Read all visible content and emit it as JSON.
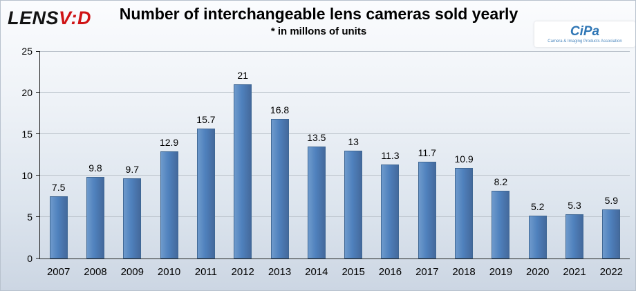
{
  "header": {
    "logo": {
      "black_part": "LENS",
      "red_part": "V:D"
    },
    "title": "Number of interchangeable lens cameras sold yearly",
    "subtitle": "* in millons of units",
    "cipa": {
      "mark": "CiPa",
      "tagline": "Camera & Imaging Products Association"
    }
  },
  "colors": {
    "bar": "#4f81bd",
    "bar_border": "#3f6794",
    "grid": "#bcc3cc",
    "logo_red": "#cf1315",
    "cipa_blue": "#2f76b5",
    "background_bottom": "#ccd6e3"
  },
  "chart_data": {
    "type": "bar",
    "title": "Number of interchangeable lens cameras sold yearly",
    "subtitle": "* in millons of units",
    "categories": [
      "2007",
      "2008",
      "2009",
      "2010",
      "2011",
      "2012",
      "2013",
      "2014",
      "2015",
      "2016",
      "2017",
      "2018",
      "2019",
      "2020",
      "2021",
      "2022"
    ],
    "values": [
      7.5,
      9.8,
      9.7,
      12.9,
      15.7,
      21,
      16.8,
      13.5,
      13,
      11.3,
      11.7,
      10.9,
      8.2,
      5.2,
      5.3,
      5.9
    ],
    "xlabel": "",
    "ylabel": "",
    "ylim": [
      0,
      25
    ],
    "ytick_step": 5,
    "grid": true,
    "legend": false
  }
}
